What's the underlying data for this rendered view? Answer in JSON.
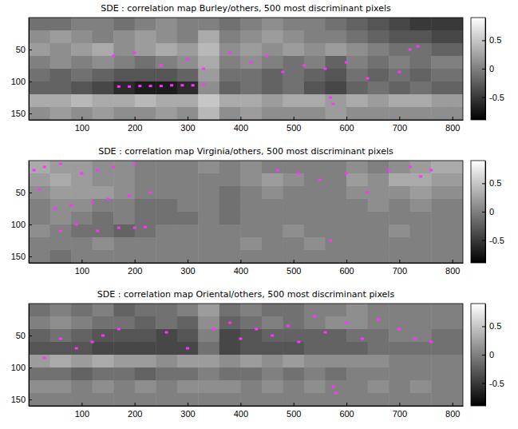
{
  "chart_data": [
    {
      "type": "heatmap",
      "title": "SDE : correlation map Burley/others, 500 most discriminant pixels",
      "x": [
        20,
        60,
        100,
        140,
        180,
        220,
        260,
        300,
        340,
        380,
        420,
        460,
        500,
        540,
        580,
        620,
        660,
        700,
        740,
        780,
        820
      ],
      "y": [
        10,
        30,
        50,
        70,
        90,
        110,
        130,
        150
      ],
      "values": [
        [
          -0.1,
          -0.1,
          0,
          0,
          -0.1,
          0,
          0.1,
          0,
          0,
          -0.1,
          0,
          0.1,
          0,
          0,
          -0.1,
          -0.2,
          -0.3,
          -0.4,
          -0.5,
          -0.5,
          -0.5
        ],
        [
          0.1,
          0.2,
          0.1,
          0,
          0.1,
          0.2,
          0.1,
          0,
          0.3,
          0,
          0.1,
          0.2,
          0.1,
          0,
          0,
          -0.1,
          -0.2,
          -0.3,
          -0.3,
          -0.4,
          -0.4
        ],
        [
          0.2,
          0.1,
          0.2,
          0.3,
          0.1,
          0.2,
          0.3,
          0.2,
          0.4,
          0.1,
          0.2,
          0.1,
          0.2,
          0.1,
          0.2,
          0.1,
          0,
          -0.1,
          -0.1,
          -0.2,
          -0.2
        ],
        [
          0,
          0.1,
          0,
          0.1,
          0,
          -0.1,
          0,
          0.1,
          0.3,
          0,
          0.1,
          0,
          -0.1,
          0,
          -0.2,
          0,
          -0.1,
          0,
          -0.1,
          0,
          0
        ],
        [
          -0.1,
          -0.2,
          -0.1,
          -0.2,
          -0.3,
          -0.3,
          -0.3,
          -0.2,
          0.2,
          -0.1,
          -0.1,
          -0.2,
          -0.1,
          -0.2,
          -0.3,
          -0.1,
          -0.2,
          -0.1,
          -0.2,
          -0.1,
          -0.1
        ],
        [
          -0.2,
          -0.2,
          -0.3,
          -0.4,
          -0.6,
          -0.7,
          -0.7,
          -0.6,
          0.1,
          -0.2,
          -0.1,
          -0.2,
          -0.1,
          -0.3,
          -0.4,
          -0.2,
          -0.1,
          -0.2,
          -0.1,
          -0.2,
          -0.2
        ],
        [
          0.3,
          0.3,
          0.4,
          0.3,
          0.3,
          0.4,
          0.3,
          0.3,
          0.5,
          0.3,
          0.3,
          0.2,
          0.3,
          0.3,
          0.2,
          0.3,
          0.2,
          0.3,
          0.3,
          0.2,
          0.2
        ],
        [
          0.1,
          0.2,
          0.1,
          0.2,
          0.1,
          0.1,
          0.2,
          0.1,
          0.4,
          0.1,
          0.2,
          0.1,
          0.1,
          0.1,
          0.2,
          0.1,
          0.1,
          0.1,
          0.1,
          0.1,
          0.1
        ]
      ],
      "xlim": [
        0,
        820
      ],
      "ylim": [
        0,
        160
      ],
      "xticks": [
        100,
        200,
        300,
        400,
        500,
        600,
        700,
        800
      ],
      "yticks": [
        50,
        100,
        150
      ],
      "colorbar": {
        "range": [
          -0.9,
          0.9
        ],
        "ticks": [
          -0.5,
          0,
          0.5
        ]
      },
      "discriminant_pixels": {
        "color": "#ff33ff",
        "x": [
          170,
          190,
          210,
          230,
          250,
          270,
          290,
          310,
          330,
          160,
          200,
          250,
          300,
          330,
          380,
          420,
          450,
          480,
          520,
          560,
          570,
          575,
          600,
          640,
          720,
          735,
          700
        ],
        "y": [
          108,
          108,
          107,
          107,
          107,
          106,
          106,
          106,
          105,
          60,
          55,
          75,
          65,
          80,
          55,
          70,
          60,
          85,
          75,
          80,
          125,
          135,
          70,
          95,
          50,
          45,
          85
        ]
      }
    },
    {
      "type": "heatmap",
      "title": "SDE : correlation map Virginia/others, 500 most discriminant pixels",
      "x": [
        20,
        60,
        100,
        140,
        180,
        220,
        260,
        300,
        340,
        380,
        420,
        460,
        500,
        540,
        580,
        620,
        660,
        700,
        740,
        780,
        820
      ],
      "y": [
        10,
        30,
        50,
        70,
        90,
        110,
        130,
        150
      ],
      "values": [
        [
          0.3,
          0.2,
          0.2,
          0.1,
          0.1,
          0,
          0,
          0,
          0.1,
          0,
          0.1,
          0,
          0,
          0,
          0,
          0.1,
          0,
          0.1,
          0.2,
          0.3,
          0.3
        ],
        [
          0.2,
          0.3,
          0.2,
          0.1,
          0.1,
          0,
          0,
          0,
          0,
          0,
          0.1,
          0.2,
          0.1,
          0,
          0,
          0.2,
          0.1,
          0.3,
          0.3,
          0.2,
          0.2
        ],
        [
          0.1,
          0.2,
          0.2,
          0.2,
          0.1,
          0,
          0,
          0,
          0,
          -0.1,
          0,
          0.1,
          0,
          0,
          0,
          0.1,
          0.1,
          0.1,
          0.2,
          0.1,
          0.1
        ],
        [
          0,
          0.1,
          0.1,
          0,
          0,
          -0.1,
          -0.1,
          0,
          0,
          -0.1,
          0,
          0,
          0,
          0,
          0,
          0,
          0.1,
          0,
          0.1,
          0,
          0
        ],
        [
          0,
          0.1,
          0,
          -0.1,
          0,
          -0.1,
          -0.1,
          -0.1,
          0,
          -0.1,
          0,
          0,
          0,
          0,
          0,
          0,
          0,
          0,
          0,
          0,
          0
        ],
        [
          0.1,
          0,
          -0.1,
          -0.1,
          -0.2,
          -0.1,
          0,
          0,
          0,
          0,
          0,
          0,
          0.1,
          0,
          0,
          0,
          0,
          0.1,
          0,
          0,
          0
        ],
        [
          0,
          0,
          0,
          0.1,
          0,
          0,
          0,
          0,
          0,
          0,
          0.1,
          0,
          0,
          0.1,
          0,
          0,
          0,
          0,
          0,
          0,
          0
        ],
        [
          0,
          -0.1,
          0,
          0,
          0,
          0,
          0,
          0,
          0,
          0,
          0,
          0,
          0,
          0,
          0,
          0,
          0,
          0,
          0,
          0,
          0
        ]
      ],
      "xlim": [
        0,
        820
      ],
      "ylim": [
        0,
        160
      ],
      "xticks": [
        100,
        200,
        300,
        400,
        500,
        600,
        700,
        800
      ],
      "yticks": [
        50,
        100,
        150
      ],
      "colorbar": {
        "range": [
          -0.9,
          0.9
        ],
        "ticks": [
          -0.5,
          0,
          0.5
        ]
      },
      "discriminant_pixels": {
        "color": "#ff33ff",
        "x": [
          10,
          30,
          60,
          100,
          130,
          160,
          200,
          20,
          50,
          80,
          120,
          150,
          190,
          230,
          60,
          130,
          170,
          200,
          220,
          90,
          470,
          510,
          550,
          600,
          680,
          720,
          740,
          760,
          570,
          640
        ],
        "y": [
          15,
          10,
          5,
          20,
          15,
          10,
          5,
          45,
          75,
          70,
          65,
          60,
          55,
          50,
          110,
          110,
          105,
          105,
          104,
          100,
          15,
          20,
          30,
          20,
          15,
          10,
          25,
          15,
          125,
          50
        ]
      }
    },
    {
      "type": "heatmap",
      "title": "SDE : correlation map Oriental/others, 500 most discriminant pixels",
      "x": [
        20,
        60,
        100,
        140,
        180,
        220,
        260,
        300,
        340,
        380,
        420,
        460,
        500,
        540,
        580,
        620,
        660,
        700,
        740,
        780,
        820
      ],
      "y": [
        10,
        30,
        50,
        70,
        90,
        110,
        130,
        150
      ],
      "values": [
        [
          -0.1,
          0,
          -0.1,
          0,
          -0.2,
          -0.1,
          -0.1,
          0,
          0.2,
          -0.1,
          0,
          -0.1,
          -0.1,
          0,
          0,
          0.1,
          0,
          0,
          0,
          0,
          0
        ],
        [
          0,
          0.1,
          0,
          -0.1,
          -0.1,
          -0.2,
          -0.1,
          -0.2,
          0.1,
          -0.2,
          -0.1,
          0,
          -0.1,
          0,
          0.1,
          0.1,
          0,
          0,
          0,
          0,
          0
        ],
        [
          -0.2,
          -0.1,
          -0.2,
          -0.3,
          -0.3,
          -0.3,
          -0.4,
          -0.3,
          0,
          -0.4,
          -0.3,
          -0.2,
          -0.2,
          -0.2,
          -0.2,
          -0.1,
          -0.1,
          0,
          0,
          -0.1,
          -0.1
        ],
        [
          -0.3,
          -0.3,
          -0.3,
          -0.4,
          -0.4,
          -0.4,
          -0.4,
          -0.4,
          -0.1,
          -0.4,
          -0.3,
          -0.3,
          -0.3,
          -0.2,
          -0.2,
          -0.2,
          -0.1,
          -0.1,
          -0.1,
          -0.1,
          -0.1
        ],
        [
          0.2,
          0.3,
          0.2,
          0.3,
          0.2,
          0.2,
          0.1,
          0.2,
          0.2,
          0.1,
          0.2,
          0.1,
          0.2,
          0.1,
          0.1,
          0.1,
          0.1,
          0,
          0,
          0,
          0
        ],
        [
          -0.1,
          -0.1,
          -0.2,
          -0.1,
          -0.1,
          -0.2,
          -0.1,
          -0.1,
          0,
          -0.1,
          -0.1,
          0,
          -0.1,
          0,
          -0.1,
          0,
          0,
          0,
          0,
          0,
          0
        ],
        [
          0.1,
          0.1,
          0,
          0.1,
          0,
          0.1,
          0,
          0.1,
          0.1,
          0.1,
          0,
          0.1,
          0,
          0.1,
          0,
          0,
          0.1,
          0,
          0.1,
          0,
          0
        ],
        [
          0,
          0,
          0,
          0,
          0,
          0,
          0,
          0,
          0,
          0,
          0,
          0,
          0,
          0,
          0,
          0,
          0,
          0,
          0,
          0,
          0
        ]
      ],
      "xlim": [
        0,
        820
      ],
      "ylim": [
        0,
        160
      ],
      "xticks": [
        100,
        200,
        300,
        400,
        500,
        600,
        700,
        800
      ],
      "yticks": [
        50,
        100,
        150
      ],
      "colorbar": {
        "range": [
          -0.9,
          0.9
        ],
        "ticks": [
          -0.5,
          0,
          0.5
        ]
      },
      "discriminant_pixels": {
        "color": "#ff33ff",
        "x": [
          60,
          90,
          120,
          140,
          170,
          30,
          350,
          380,
          400,
          430,
          460,
          490,
          510,
          540,
          560,
          600,
          630,
          660,
          700,
          730,
          760,
          575,
          580,
          260,
          300
        ],
        "y": [
          55,
          70,
          60,
          50,
          40,
          85,
          40,
          30,
          55,
          40,
          50,
          35,
          60,
          20,
          45,
          30,
          55,
          25,
          40,
          55,
          60,
          130,
          140,
          45,
          70
        ]
      }
    }
  ]
}
